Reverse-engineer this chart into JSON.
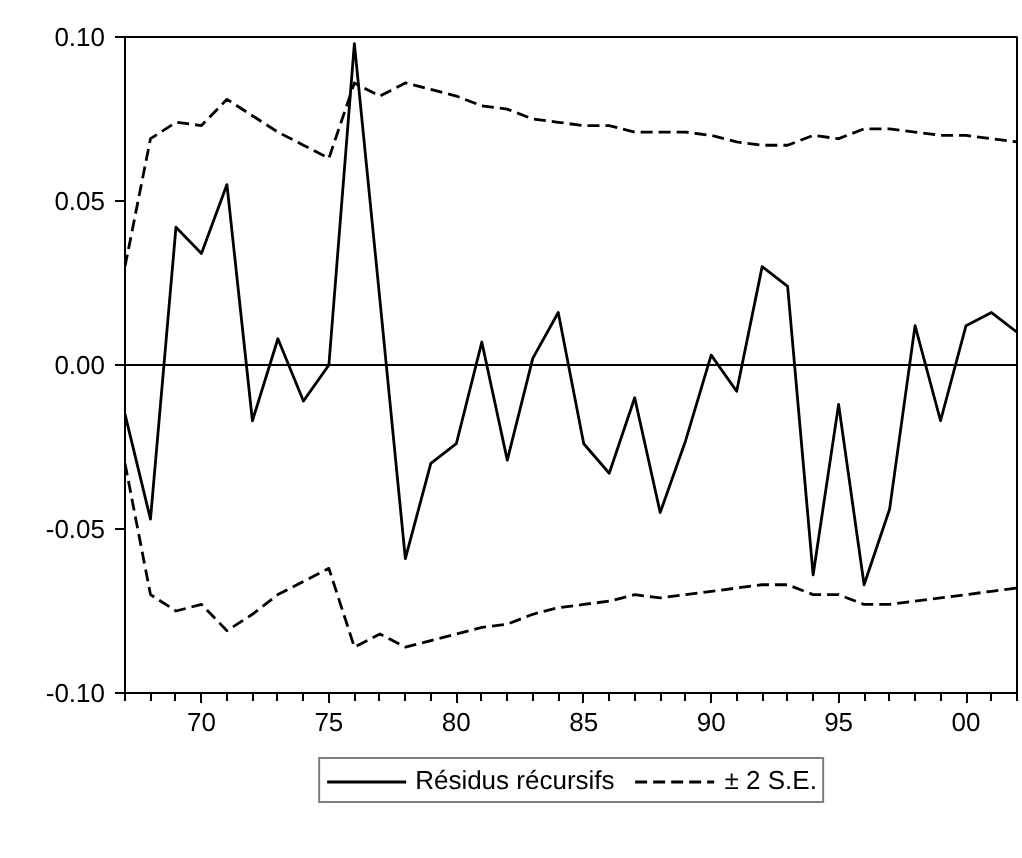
{
  "chart_data": {
    "type": "line",
    "x": [
      "1967",
      "1968",
      "1969",
      "1970",
      "1971",
      "1972",
      "1973",
      "1974",
      "1975",
      "1976",
      "1977",
      "1978",
      "1979",
      "1980",
      "1981",
      "1982",
      "1983",
      "1984",
      "1985",
      "1986",
      "1987",
      "1988",
      "1989",
      "1990",
      "1991",
      "1992",
      "1993",
      "1994",
      "1995",
      "1996",
      "1997",
      "1998",
      "1999",
      "2000",
      "2001",
      "2002"
    ],
    "series": [
      {
        "name": "Résidus récursifs",
        "color": "#000000",
        "line_style": "solid",
        "values": [
          -0.015,
          -0.047,
          0.042,
          0.034,
          0.055,
          -0.017,
          0.008,
          -0.011,
          0.0,
          0.098,
          0.02,
          -0.059,
          -0.03,
          -0.024,
          0.007,
          -0.029,
          0.002,
          0.016,
          -0.024,
          -0.033,
          -0.01,
          -0.045,
          -0.023,
          0.003,
          -0.008,
          0.03,
          0.024,
          -0.064,
          -0.012,
          -0.067,
          -0.044,
          0.012,
          -0.017,
          0.012,
          0.016,
          0.01
        ]
      },
      {
        "name": "± 2 S.E.",
        "color": "#000000",
        "line_style": "dashed",
        "values": [
          0.03,
          0.069,
          0.074,
          0.073,
          0.081,
          0.076,
          0.071,
          0.067,
          0.063,
          0.086,
          0.082,
          0.086,
          0.084,
          0.082,
          0.079,
          0.078,
          0.075,
          0.074,
          0.073,
          0.073,
          0.071,
          0.071,
          0.071,
          0.07,
          0.068,
          0.067,
          0.067,
          0.07,
          0.069,
          0.072,
          0.072,
          0.071,
          0.07,
          0.07,
          0.069,
          0.068
        ]
      },
      {
        "color": "#000000",
        "line_style": "dashed",
        "values": [
          -0.03,
          -0.07,
          -0.075,
          -0.073,
          -0.081,
          -0.076,
          -0.07,
          -0.066,
          -0.062,
          -0.086,
          -0.082,
          -0.086,
          -0.084,
          -0.082,
          -0.08,
          -0.079,
          -0.076,
          -0.074,
          -0.073,
          -0.072,
          -0.07,
          -0.071,
          -0.07,
          -0.069,
          -0.068,
          -0.067,
          -0.067,
          -0.07,
          -0.07,
          -0.073,
          -0.073,
          -0.072,
          -0.071,
          -0.07,
          -0.069,
          -0.068
        ]
      }
    ],
    "xlim": [
      "1967",
      "2002"
    ],
    "xticks": [
      {
        "value": "1967",
        "label": null
      },
      {
        "value": "1968",
        "label": null
      },
      {
        "value": "1969",
        "label": null
      },
      {
        "value": "1970",
        "label": "70"
      },
      {
        "value": "1971",
        "label": null
      },
      {
        "value": "1972",
        "label": null
      },
      {
        "value": "1973",
        "label": null
      },
      {
        "value": "1974",
        "label": null
      },
      {
        "value": "1975",
        "label": "75"
      },
      {
        "value": "1976",
        "label": null
      },
      {
        "value": "1977",
        "label": null
      },
      {
        "value": "1978",
        "label": null
      },
      {
        "value": "1979",
        "label": null
      },
      {
        "value": "1980",
        "label": "80"
      },
      {
        "value": "1981",
        "label": null
      },
      {
        "value": "1982",
        "label": null
      },
      {
        "value": "1983",
        "label": null
      },
      {
        "value": "1984",
        "label": null
      },
      {
        "value": "1985",
        "label": "85"
      },
      {
        "value": "1986",
        "label": null
      },
      {
        "value": "1987",
        "label": null
      },
      {
        "value": "1988",
        "label": null
      },
      {
        "value": "1989",
        "label": null
      },
      {
        "value": "1990",
        "label": "90"
      },
      {
        "value": "1991",
        "label": null
      },
      {
        "value": "1992",
        "label": null
      },
      {
        "value": "1993",
        "label": null
      },
      {
        "value": "1994",
        "label": null
      },
      {
        "value": "1995",
        "label": "95"
      },
      {
        "value": "1996",
        "label": null
      },
      {
        "value": "1997",
        "label": null
      },
      {
        "value": "1998",
        "label": null
      },
      {
        "value": "1999",
        "label": null
      },
      {
        "value": "2000",
        "label": "00"
      },
      {
        "value": "2001",
        "label": null
      },
      {
        "value": "2002",
        "label": null
      }
    ],
    "ylim": [
      -0.1,
      0.1
    ],
    "yticks": [
      {
        "value": -0.1,
        "label": "-0.10"
      },
      {
        "value": -0.05,
        "label": "-0.05"
      },
      {
        "value": 0,
        "label": "0.00"
      },
      {
        "value": 0.05,
        "label": "0.05"
      },
      {
        "value": 0.1,
        "label": "0.10"
      }
    ],
    "ref_lines": [
      {
        "axis": "y",
        "value": 0,
        "color": "#000000",
        "line_style": "solid"
      }
    ],
    "grid": false,
    "legend": "bottom",
    "marker": "none"
  }
}
